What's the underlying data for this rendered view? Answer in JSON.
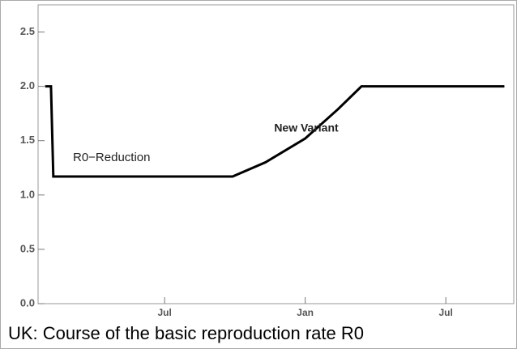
{
  "chart_data": {
    "type": "line",
    "caption": "UK: Course of the basic reproduction rate R0",
    "annotations": [
      "R0−Reduction",
      "New Variant"
    ],
    "x": [
      0.9,
      1.15,
      1.25,
      8.9,
      10.3,
      12,
      13.4,
      14.4,
      20.5
    ],
    "values": [
      2.0,
      2.0,
      1.17,
      1.17,
      1.3,
      1.52,
      1.79,
      2.0,
      2.0
    ],
    "color": "#000000",
    "xlim": [
      0.6,
      20.9
    ],
    "xticks": [
      {
        "value": 6,
        "label": "Jul"
      },
      {
        "value": 12,
        "label": "Jan"
      },
      {
        "value": 18,
        "label": "Jul"
      }
    ],
    "ylim": [
      0,
      2.75
    ],
    "yticks": [
      {
        "value": 0,
        "label": "0.0"
      },
      0.5,
      {
        "value": 1,
        "label": "1.0"
      },
      1.5,
      {
        "value": 2,
        "label": "2.0"
      },
      2.5
    ]
  }
}
